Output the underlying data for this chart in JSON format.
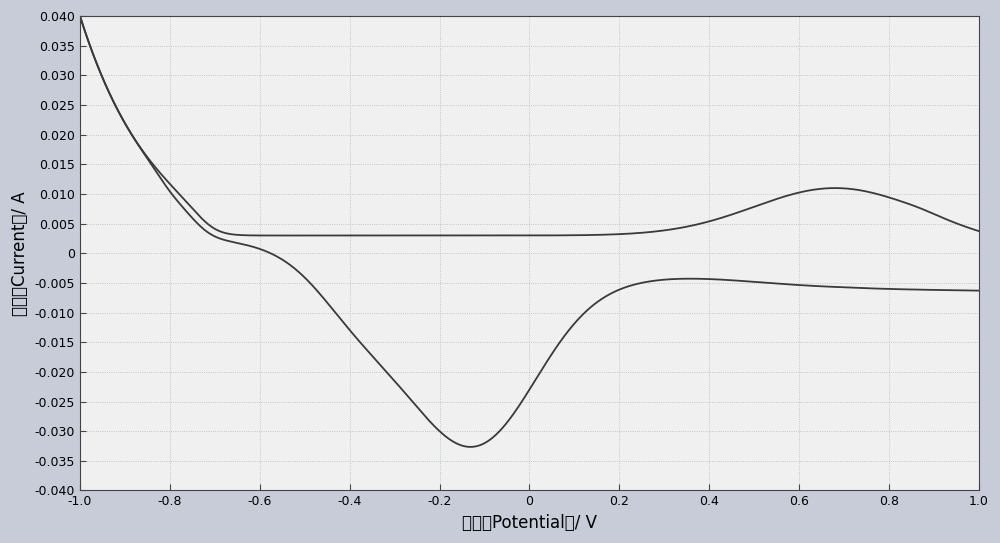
{
  "xlabel": "电势（Potential）/ V",
  "ylabel": "电流（Current）/ A",
  "xlim": [
    -1.0,
    1.0
  ],
  "ylim": [
    -0.04,
    0.04
  ],
  "xticks": [
    -1.0,
    -0.8,
    -0.6,
    -0.4,
    -0.2,
    0.0,
    0.2,
    0.4,
    0.6,
    0.8,
    1.0
  ],
  "yticks": [
    -0.04,
    -0.035,
    -0.03,
    -0.025,
    -0.02,
    -0.015,
    -0.01,
    -0.005,
    0.0,
    0.005,
    0.01,
    0.015,
    0.02,
    0.025,
    0.03,
    0.035,
    0.04
  ],
  "bg_color": "#f0f0f0",
  "line_color": "#3a3a3a",
  "grid_color": "#aabbc8",
  "fig_bg": "#c8ccd8"
}
